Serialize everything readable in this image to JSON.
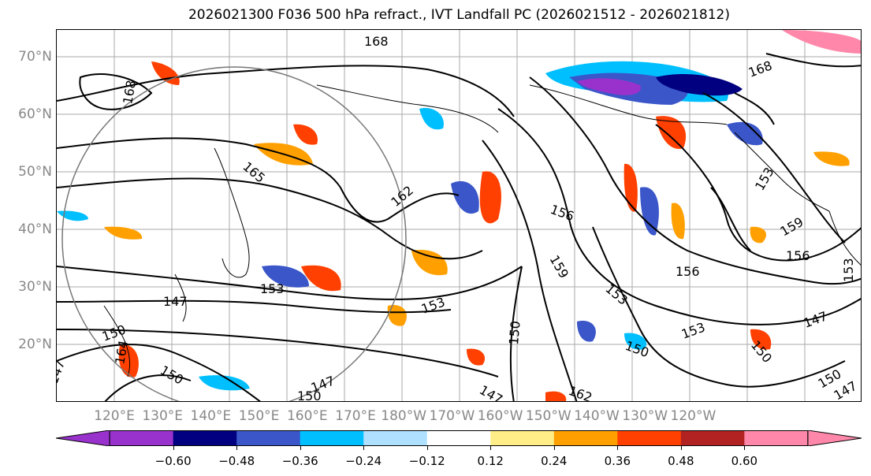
{
  "title": "2026021300 F036 500 hPa refract., IVT Landfall PC (2026021512 - 2026021812)",
  "latitude_labels": [
    "70°N",
    "60°N",
    "50°N",
    "40°N",
    "30°N",
    "20°N"
  ],
  "longitude_labels": [
    "120°E",
    "130°E",
    "140°E",
    "150°E",
    "160°E",
    "170°E",
    "180°W",
    "170°W",
    "160°W",
    "150°W",
    "140°W",
    "130°W",
    "120°W"
  ],
  "contour_labels": [
    "168",
    "168",
    "168",
    "165",
    "162",
    "156",
    "159",
    "153",
    "147",
    "153",
    "156",
    "159",
    "156",
    "153",
    "150",
    "150",
    "147",
    "150",
    "153",
    "153",
    "150",
    "147",
    "150",
    "147",
    "162",
    "164",
    "150",
    "153",
    "147",
    "147",
    "150"
  ],
  "colorbar": {
    "ticks": [
      "−0.60",
      "−0.48",
      "−0.36",
      "−0.24",
      "−0.12",
      "0.12",
      "0.24",
      "0.36",
      "0.48",
      "0.60"
    ],
    "colors": [
      "#9932cc",
      "#000080",
      "#3a56c8",
      "#00bfff",
      "#b0e0ff",
      "#ffffff",
      "#ffee88",
      "#ffa000",
      "#ff4000",
      "#b22222",
      "#ff88aa"
    ]
  }
}
